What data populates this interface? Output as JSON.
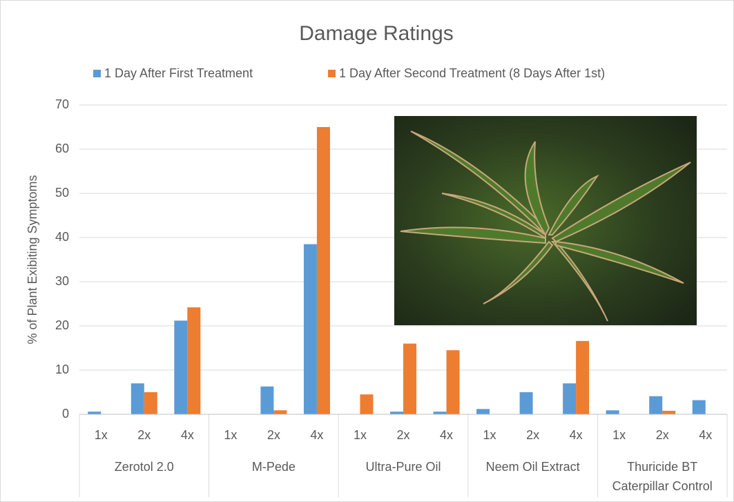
{
  "chart_data": {
    "type": "bar",
    "title": "Damage Ratings",
    "y_label": "% of Plant Exibiting Symptoms",
    "categories": [
      "1x",
      "2x",
      "4x",
      "1x",
      "2x",
      "4x",
      "1x",
      "2x",
      "4x",
      "1x",
      "2x",
      "4x",
      "1x",
      "2x",
      "4x"
    ],
    "groups": [
      "Zerotol 2.0",
      "M-Pede",
      "Ultra-Pure Oil",
      "Neem Oil Extract",
      "Thuricide BT Caterpillar Control"
    ],
    "series": [
      {
        "name": "1 Day After First Treatment",
        "color": "#5b9bd5",
        "values": [
          0.6,
          7,
          21.2,
          0,
          6.3,
          38.5,
          0,
          0.6,
          0.6,
          1.2,
          5,
          7,
          0.9,
          4.1,
          3.2
        ]
      },
      {
        "name": "1 Day After Second Treatment (8 Days After 1st)",
        "color": "#ed7d31",
        "values": [
          0,
          5,
          24.2,
          0,
          0.9,
          65,
          4.5,
          16,
          14.5,
          0,
          0,
          16.6,
          0,
          0.8,
          0
        ]
      }
    ],
    "ylim": [
      0,
      70
    ],
    "yticks": [
      0,
      10,
      20,
      30,
      40,
      50,
      60,
      70
    ],
    "grid": true
  }
}
